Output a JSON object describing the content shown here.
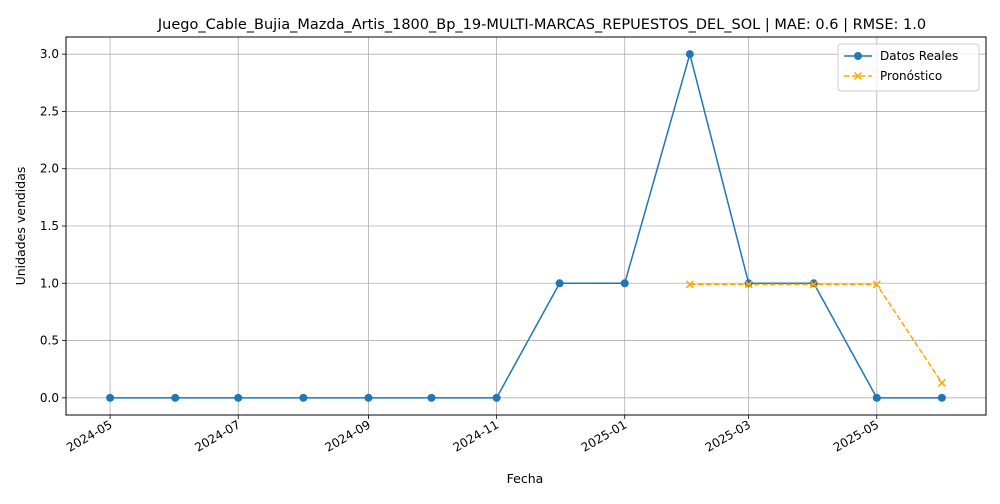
{
  "chart_data": {
    "type": "line",
    "title": "Juego_Cable_Bujia_Mazda_Artis_1800_Bp_19-MULTI-MARCAS_REPUESTOS_DEL_SOL | MAE: 0.6 | RMSE: 1.0",
    "xlabel": "Fecha",
    "ylabel": "Unidades vendidas",
    "x_ticks": [
      "2024-05",
      "2024-07",
      "2024-09",
      "2024-11",
      "2025-01",
      "2025-03",
      "2025-05"
    ],
    "y_ticks": [
      "0.0",
      "0.5",
      "1.0",
      "1.5",
      "2.0",
      "2.5",
      "3.0"
    ],
    "ylim": [
      -0.15,
      3.15
    ],
    "xlim": [
      "2024-04-10",
      "2025-06-22"
    ],
    "grid": true,
    "legend_position": "top-right",
    "series": [
      {
        "name": "Datos Reales",
        "color": "#1f77b4",
        "style": "solid",
        "marker": "circle",
        "x": [
          "2024-05-01",
          "2024-06-01",
          "2024-07-01",
          "2024-08-01",
          "2024-09-01",
          "2024-10-01",
          "2024-11-01",
          "2024-12-01",
          "2025-01-01",
          "2025-02-01",
          "2025-03-01",
          "2025-04-01",
          "2025-05-01",
          "2025-06-01"
        ],
        "values": [
          0,
          0,
          0,
          0,
          0,
          0,
          0,
          1,
          1,
          3,
          1,
          1,
          0,
          0
        ]
      },
      {
        "name": "Pronóstico",
        "color": "#ffa500",
        "style": "dashed",
        "marker": "x",
        "x": [
          "2025-02-01",
          "2025-03-01",
          "2025-04-01",
          "2025-05-01",
          "2025-06-01"
        ],
        "values": [
          0.99,
          0.99,
          0.99,
          0.99,
          0.13
        ]
      }
    ]
  }
}
